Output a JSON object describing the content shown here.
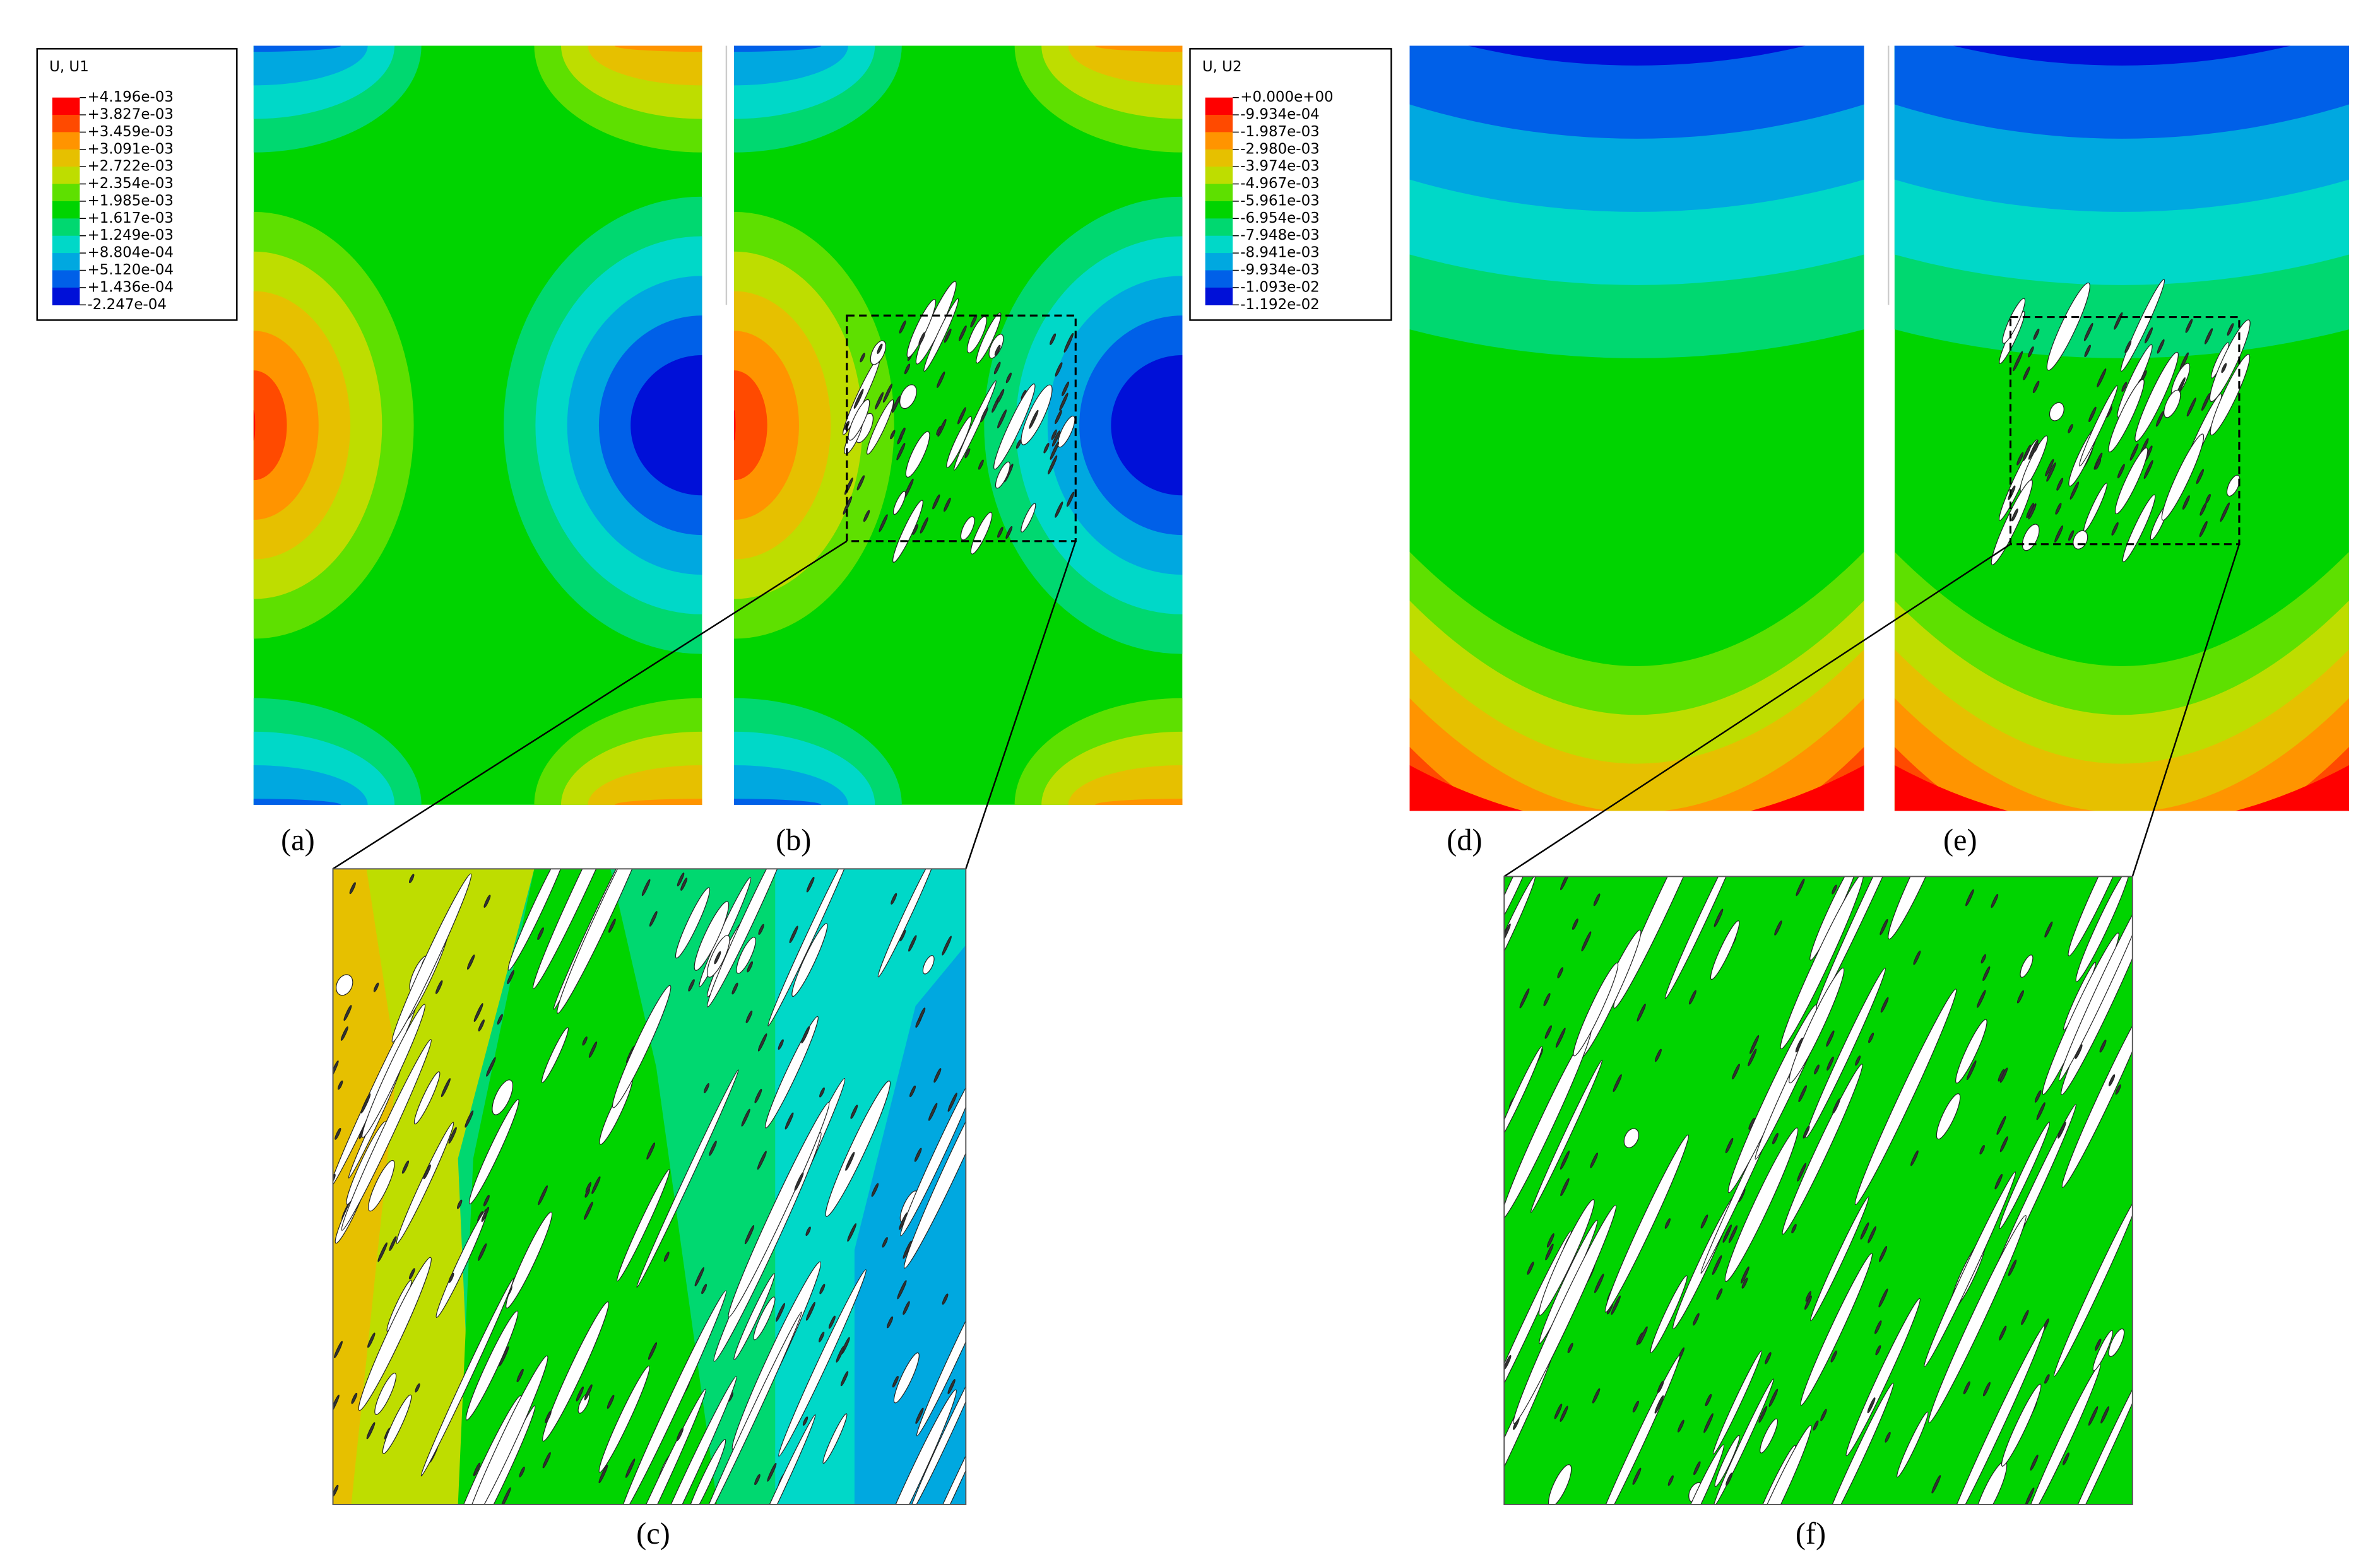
{
  "legends": [
    {
      "title": "U, U1",
      "labels": [
        "+4.196e-03",
        "+3.827e-03",
        "+3.459e-03",
        "+3.091e-03",
        "+2.722e-03",
        "+2.354e-03",
        "+1.985e-03",
        "+1.617e-03",
        "+1.249e-03",
        "+8.804e-04",
        "+5.120e-04",
        "+1.436e-04",
        "-2.247e-04"
      ]
    },
    {
      "title": "U, U2",
      "labels": [
        "+0.000e+00",
        "-9.934e-04",
        "-1.987e-03",
        "-2.980e-03",
        "-3.974e-03",
        "-4.967e-03",
        "-5.961e-03",
        "-6.954e-03",
        "-7.948e-03",
        "-8.941e-03",
        "-9.934e-03",
        "-1.093e-02",
        "-1.192e-02"
      ]
    }
  ],
  "panels": [
    "(a)",
    "(b)",
    "(c)",
    "(d)",
    "(e)",
    "(f)"
  ]
}
